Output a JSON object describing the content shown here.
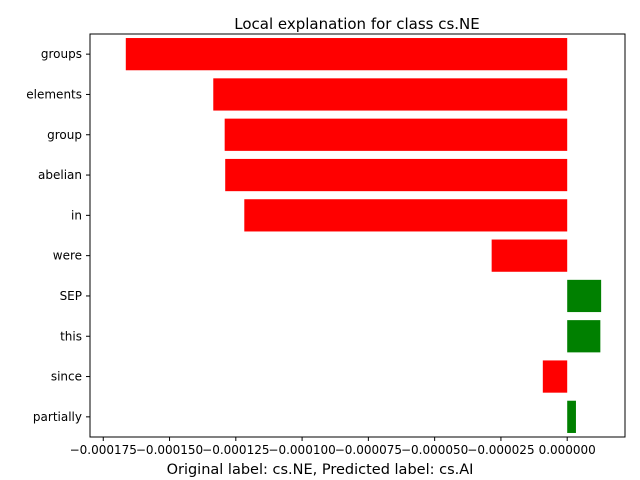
{
  "chart_data": {
    "type": "bar",
    "orientation": "horizontal",
    "title": "Local explanation for class cs.NE",
    "xlabel": "Original label: cs.NE, Predicted label: cs.AI",
    "ylabel": "",
    "categories": [
      "groups",
      "elements",
      "group",
      "abelian",
      "in",
      "were",
      "SEP",
      "this",
      "since",
      "partially"
    ],
    "values": [
      -0.0001665,
      -0.0001335,
      -0.0001292,
      -0.000129,
      -0.0001218,
      -2.85e-05,
      1.28e-05,
      1.25e-05,
      -9.2e-06,
      3.3e-06
    ],
    "xlim": [
      -0.00018,
      2.18e-05
    ],
    "xticks": [
      -0.000175,
      -0.00015,
      -0.000125,
      -0.0001,
      -7.5e-05,
      -5e-05,
      -2.5e-05,
      0.0
    ],
    "xtick_labels": [
      "−0.000175",
      "−0.000150",
      "−0.000125",
      "−0.000100",
      "−0.000075",
      "−0.000050",
      "−0.000025",
      "0.000000"
    ],
    "colors": {
      "positive": "#008000",
      "negative": "#ff0000"
    },
    "grid": false,
    "legend": "none"
  }
}
